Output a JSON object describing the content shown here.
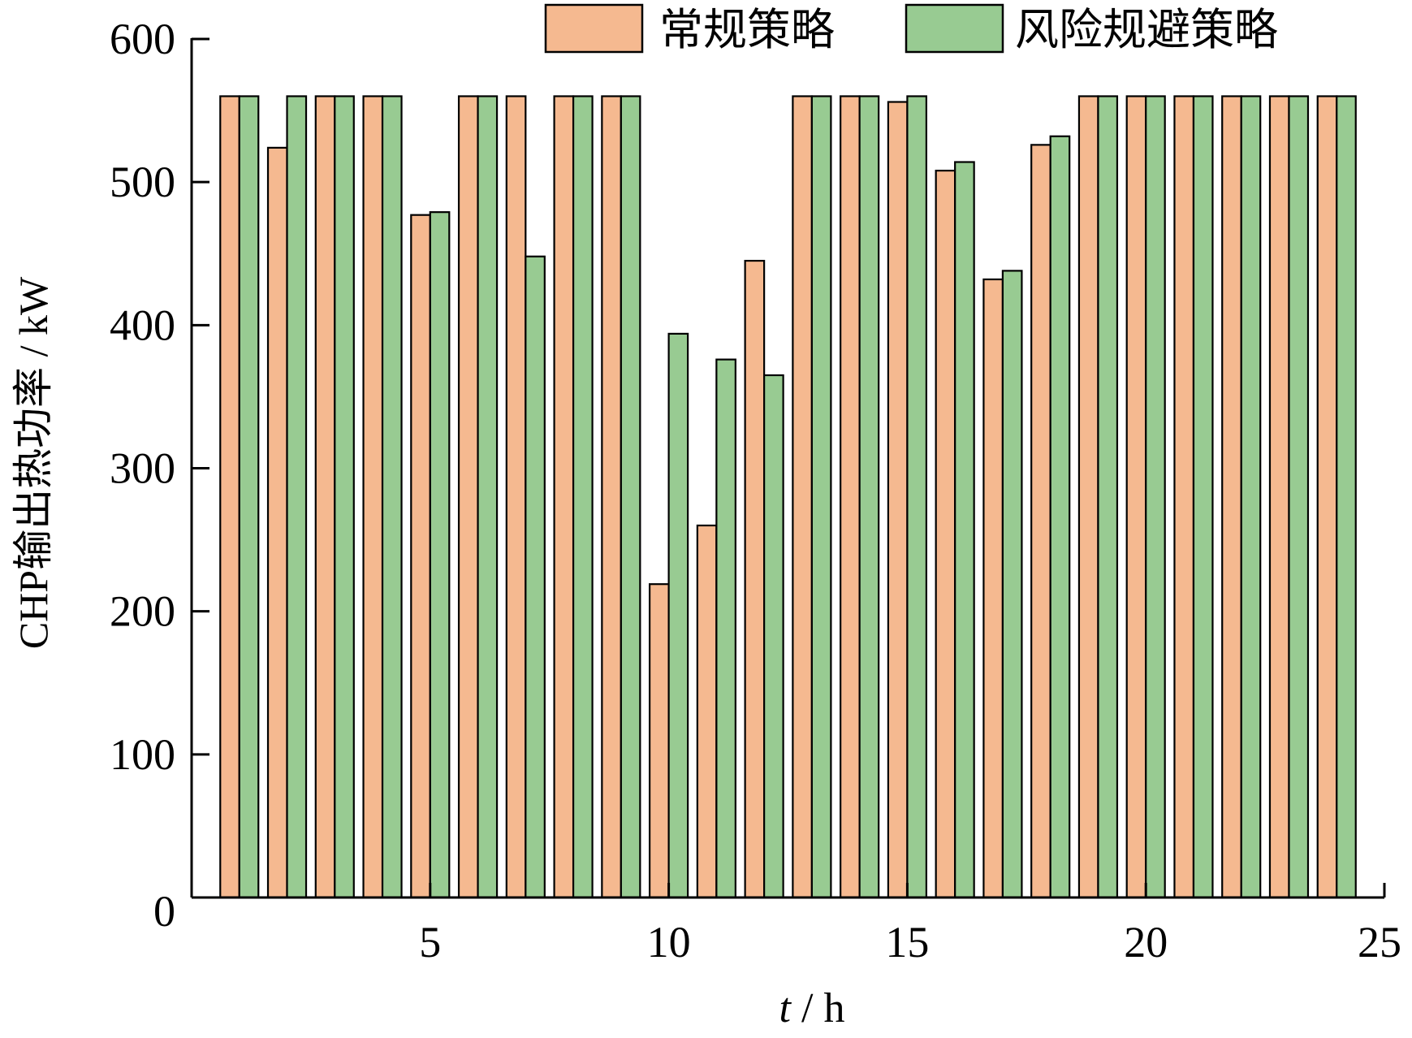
{
  "chart_data": {
    "type": "bar",
    "title": "",
    "xlabel": "t",
    "xlabel_unit": " / h",
    "ylabel": "CHP输出热功率 / kW",
    "xlim": [
      0,
      25
    ],
    "ylim": [
      0,
      600
    ],
    "xticks": [
      5,
      10,
      15,
      20,
      25
    ],
    "yticks": [
      0,
      100,
      200,
      300,
      400,
      500,
      600
    ],
    "grid": false,
    "legend_position": "top-right",
    "x": [
      1,
      2,
      3,
      4,
      5,
      6,
      7,
      8,
      9,
      10,
      11,
      12,
      13,
      14,
      15,
      16,
      17,
      18,
      19,
      20,
      21,
      22,
      23,
      24
    ],
    "series": [
      {
        "name": "常规策略",
        "color": "#F5B990",
        "values": [
          560,
          524,
          560,
          560,
          477,
          560,
          560,
          560,
          560,
          219,
          260,
          445,
          560,
          560,
          556,
          508,
          432,
          526,
          560,
          560,
          560,
          560,
          560,
          560
        ]
      },
      {
        "name": "风险规避策略",
        "color": "#98CB92",
        "values": [
          560,
          560,
          560,
          560,
          479,
          560,
          448,
          560,
          560,
          394,
          376,
          365,
          560,
          560,
          560,
          514,
          438,
          532,
          560,
          560,
          560,
          560,
          560,
          560
        ]
      }
    ]
  }
}
